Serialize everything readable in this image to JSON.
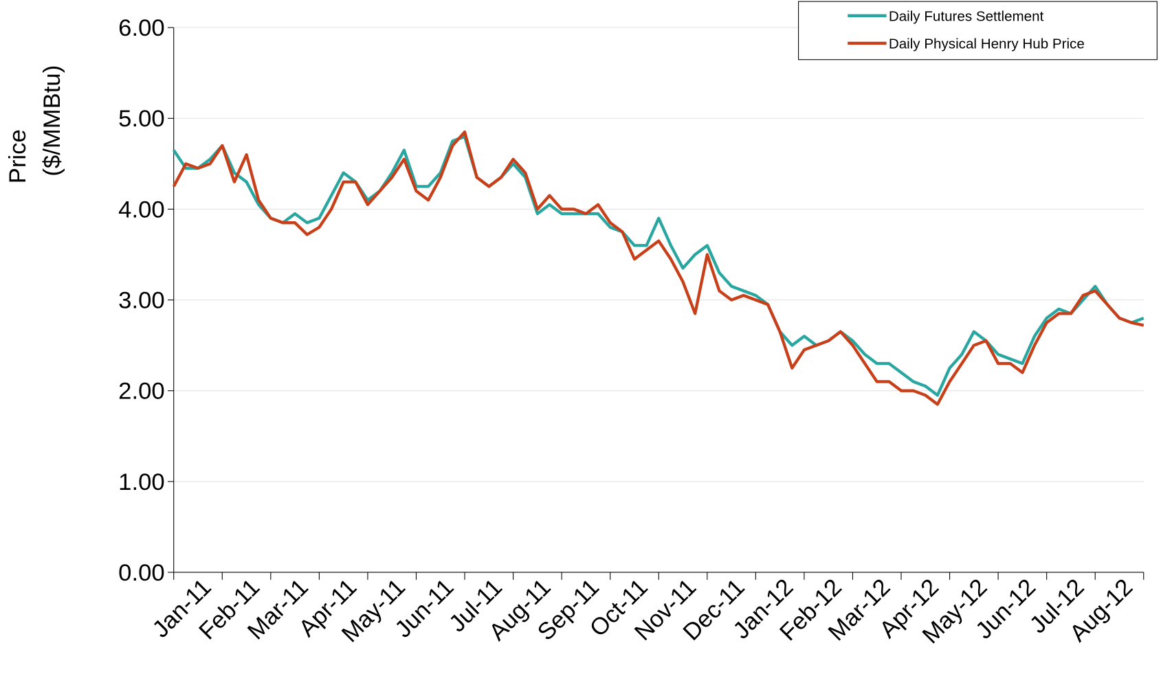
{
  "chart_data": {
    "type": "line",
    "ylabel": [
      "Price",
      "($/MMBtu)"
    ],
    "categories": [
      "Jan-11",
      null,
      null,
      null,
      "Feb-11",
      null,
      null,
      null,
      "Mar-11",
      null,
      null,
      null,
      "Apr-11",
      null,
      null,
      null,
      "May-11",
      null,
      null,
      null,
      "Jun-11",
      null,
      null,
      null,
      "Jul-11",
      null,
      null,
      null,
      "Aug-11",
      null,
      null,
      null,
      "Sep-11",
      null,
      null,
      null,
      "Oct-11",
      null,
      null,
      null,
      "Nov-11",
      null,
      null,
      null,
      "Dec-11",
      null,
      null,
      null,
      "Jan-12",
      null,
      null,
      null,
      "Feb-12",
      null,
      null,
      null,
      "Mar-12",
      null,
      null,
      null,
      "Apr-12",
      null,
      null,
      null,
      "May-12",
      null,
      null,
      null,
      "Jun-12",
      null,
      null,
      null,
      "Jul-12",
      null,
      null,
      null,
      "Aug-12",
      null,
      null,
      null,
      null
    ],
    "series": [
      {
        "name": "Daily Futures Settlement",
        "color": "#2aa6a0",
        "values": [
          4.65,
          4.45,
          4.45,
          4.55,
          4.7,
          4.4,
          4.3,
          4.05,
          3.9,
          3.85,
          3.95,
          3.85,
          3.9,
          4.15,
          4.4,
          4.3,
          4.1,
          4.2,
          4.4,
          4.65,
          4.25,
          4.25,
          4.4,
          4.75,
          4.8,
          4.35,
          4.25,
          4.35,
          4.5,
          4.35,
          3.95,
          4.05,
          3.95,
          3.95,
          3.95,
          3.95,
          3.8,
          3.75,
          3.6,
          3.6,
          3.9,
          3.6,
          3.35,
          3.5,
          3.6,
          3.3,
          3.15,
          3.1,
          3.05,
          2.95,
          2.65,
          2.5,
          2.6,
          2.5,
          2.55,
          2.65,
          2.55,
          2.4,
          2.3,
          2.3,
          2.2,
          2.1,
          2.05,
          1.95,
          2.25,
          2.4,
          2.65,
          2.55,
          2.4,
          2.35,
          2.3,
          2.6,
          2.8,
          2.9,
          2.85,
          3.0,
          3.15,
          2.95,
          2.8,
          2.75,
          2.8
        ]
      },
      {
        "name": "Daily Physical Henry Hub Price",
        "color": "#c8401a",
        "values": [
          4.25,
          4.5,
          4.45,
          4.5,
          4.7,
          4.3,
          4.6,
          4.1,
          3.9,
          3.85,
          3.85,
          3.72,
          3.8,
          4.0,
          4.3,
          4.3,
          4.05,
          4.2,
          4.35,
          4.55,
          4.2,
          4.1,
          4.35,
          4.7,
          4.85,
          4.35,
          4.25,
          4.35,
          4.55,
          4.4,
          4.0,
          4.15,
          4.0,
          4.0,
          3.95,
          4.05,
          3.85,
          3.75,
          3.45,
          3.55,
          3.65,
          3.45,
          3.2,
          2.85,
          3.5,
          3.1,
          3.0,
          3.05,
          3.0,
          2.95,
          2.65,
          2.25,
          2.45,
          2.5,
          2.55,
          2.65,
          2.5,
          2.3,
          2.1,
          2.1,
          2.0,
          2.0,
          1.95,
          1.85,
          2.1,
          2.3,
          2.5,
          2.55,
          2.3,
          2.3,
          2.2,
          2.5,
          2.75,
          2.85,
          2.85,
          3.05,
          3.1,
          2.95,
          2.8,
          2.75,
          2.72
        ]
      }
    ],
    "ylim": [
      0,
      6
    ],
    "yticks": [
      {
        "value": 0,
        "label": "0.00"
      },
      {
        "value": 1,
        "label": "1.00"
      },
      {
        "value": 2,
        "label": "2.00"
      },
      {
        "value": 3,
        "label": "3.00"
      },
      {
        "value": 4,
        "label": "4.00"
      },
      {
        "value": 5,
        "label": "5.00"
      },
      {
        "value": 6,
        "label": "6.00"
      }
    ],
    "grid": true,
    "legend": "top-right"
  }
}
